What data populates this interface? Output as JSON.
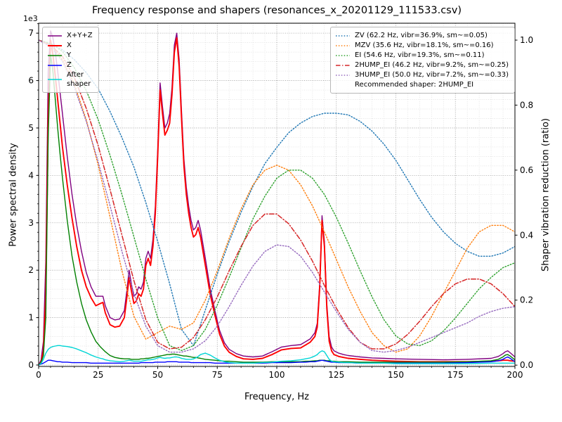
{
  "chart_data": {
    "type": "line",
    "title": "Frequency response and shapers (resonances_x_20201129_111533.csv)",
    "xlabel": "Frequency, Hz",
    "ylabel_left": "Power spectral density",
    "ylabel_right": "Shaper vibration reduction (ratio)",
    "y_left_offset_text": "1e3",
    "xlim": [
      0,
      200
    ],
    "ylim_left": [
      -0.03,
      7.21
    ],
    "ylim_right": [
      -0.004,
      1.052
    ],
    "xticks": [
      0,
      25,
      50,
      75,
      100,
      125,
      150,
      175,
      200
    ],
    "yticks_left": {
      "values": [
        0,
        1,
        2,
        3,
        4,
        5,
        6,
        7
      ],
      "labels": [
        "0",
        "1",
        "2",
        "3",
        "4",
        "5",
        "6",
        "7"
      ]
    },
    "yticks_right": {
      "values": [
        0,
        0.2,
        0.4,
        0.6,
        0.8,
        1.0
      ],
      "labels": [
        "0.0",
        "0.2",
        "0.4",
        "0.6",
        "0.8",
        "1.0"
      ]
    },
    "grid": {
      "major": true,
      "minor": true,
      "major_color": "#9b9b9b",
      "minor_color": "#dcdcdc",
      "x_minor_step": 5,
      "y_minor_step": 0.2
    },
    "psd_x": [
      0,
      1,
      2,
      3,
      4,
      5,
      6,
      7,
      8,
      9,
      10,
      12,
      14,
      16,
      18,
      20,
      22,
      24,
      26,
      27,
      28,
      30,
      32,
      34,
      36,
      37,
      38,
      39,
      40,
      41,
      42,
      43,
      44,
      45,
      46,
      47,
      48,
      49,
      50,
      51,
      52,
      53,
      54,
      55,
      56,
      57,
      58,
      59,
      60,
      61,
      62,
      63,
      64,
      65,
      66,
      67,
      68,
      70,
      72,
      74,
      76,
      78,
      80,
      83,
      86,
      90,
      94,
      98,
      102,
      106,
      110,
      112,
      114,
      116,
      117,
      118,
      119,
      120,
      121,
      122,
      123,
      124,
      126,
      128,
      130,
      135,
      140,
      145,
      150,
      160,
      170,
      180,
      190,
      193,
      195,
      196,
      197,
      198,
      200
    ],
    "psd_series": [
      {
        "name": "X+Y+Z",
        "color": "#800080",
        "linestyle": "solid",
        "width": 1.4,
        "y": [
          0,
          0.1,
          0.5,
          2.2,
          6.2,
          7.05,
          6.9,
          6.6,
          6.2,
          5.75,
          5.3,
          4.4,
          3.6,
          2.95,
          2.4,
          1.95,
          1.65,
          1.45,
          1.45,
          1.45,
          1.25,
          1,
          0.95,
          0.97,
          1.15,
          1.55,
          2,
          1.7,
          1.45,
          1.5,
          1.65,
          1.6,
          1.75,
          2.25,
          2.4,
          2.25,
          2.65,
          3.35,
          4.55,
          5.95,
          5.45,
          5,
          5.1,
          5.3,
          5.85,
          6.75,
          7,
          6.45,
          5.35,
          4.35,
          3.75,
          3.35,
          3.05,
          2.85,
          2.9,
          3.05,
          2.85,
          2.25,
          1.62,
          1.15,
          0.73,
          0.47,
          0.33,
          0.24,
          0.19,
          0.17,
          0.19,
          0.28,
          0.38,
          0.41,
          0.43,
          0.49,
          0.55,
          0.68,
          0.88,
          1.7,
          3.15,
          2.6,
          1.3,
          0.6,
          0.38,
          0.3,
          0.25,
          0.22,
          0.2,
          0.17,
          0.15,
          0.14,
          0.13,
          0.12,
          0.11,
          0.12,
          0.14,
          0.18,
          0.24,
          0.28,
          0.3,
          0.26,
          0.17
        ]
      },
      {
        "name": "X",
        "color": "#ff0000",
        "linestyle": "solid",
        "width": 1.9,
        "y": [
          0,
          0.05,
          0.3,
          1.5,
          5.2,
          6.85,
          6.55,
          6.1,
          5.6,
          5.1,
          4.6,
          3.8,
          3.1,
          2.5,
          2,
          1.65,
          1.42,
          1.25,
          1.3,
          1.32,
          1.1,
          0.85,
          0.8,
          0.82,
          1,
          1.4,
          1.85,
          1.55,
          1.3,
          1.35,
          1.5,
          1.45,
          1.6,
          2.1,
          2.25,
          2.1,
          2.5,
          3.2,
          4.4,
          5.8,
          5.3,
          4.85,
          4.95,
          5.1,
          5.7,
          6.6,
          6.9,
          6.3,
          5.2,
          4.2,
          3.6,
          3.2,
          2.9,
          2.7,
          2.75,
          2.9,
          2.7,
          2.1,
          1.5,
          1.05,
          0.65,
          0.4,
          0.27,
          0.18,
          0.13,
          0.12,
          0.14,
          0.22,
          0.32,
          0.35,
          0.36,
          0.42,
          0.48,
          0.6,
          0.8,
          1.6,
          3.05,
          2.5,
          1.2,
          0.5,
          0.3,
          0.22,
          0.18,
          0.16,
          0.14,
          0.12,
          0.1,
          0.09,
          0.08,
          0.07,
          0.07,
          0.07,
          0.08,
          0.09,
          0.1,
          0.1,
          0.1,
          0.09,
          0.08
        ]
      },
      {
        "name": "Y",
        "color": "#008000",
        "linestyle": "solid",
        "width": 1.4,
        "y": [
          0,
          0.05,
          0.2,
          1,
          4.8,
          6.55,
          6.2,
          5.6,
          5,
          4.45,
          3.95,
          3.05,
          2.3,
          1.75,
          1.3,
          0.95,
          0.7,
          0.5,
          0.38,
          0.33,
          0.28,
          0.2,
          0.16,
          0.14,
          0.13,
          0.13,
          0.13,
          0.12,
          0.12,
          0.12,
          0.12,
          0.13,
          0.13,
          0.14,
          0.14,
          0.15,
          0.16,
          0.17,
          0.18,
          0.19,
          0.2,
          0.21,
          0.22,
          0.22,
          0.23,
          0.23,
          0.22,
          0.21,
          0.2,
          0.19,
          0.19,
          0.18,
          0.17,
          0.16,
          0.16,
          0.15,
          0.14,
          0.12,
          0.11,
          0.1,
          0.09,
          0.08,
          0.08,
          0.07,
          0.06,
          0.06,
          0.06,
          0.07,
          0.07,
          0.07,
          0.07,
          0.08,
          0.08,
          0.09,
          0.09,
          0.1,
          0.1,
          0.1,
          0.09,
          0.09,
          0.08,
          0.08,
          0.07,
          0.07,
          0.07,
          0.06,
          0.06,
          0.06,
          0.06,
          0.06,
          0.06,
          0.07,
          0.09,
          0.12,
          0.17,
          0.21,
          0.22,
          0.19,
          0.11
        ]
      },
      {
        "name": "Z",
        "color": "#0000ff",
        "linestyle": "solid",
        "width": 1.4,
        "y": [
          0,
          0.02,
          0.04,
          0.07,
          0.1,
          0.1,
          0.09,
          0.08,
          0.07,
          0.07,
          0.06,
          0.06,
          0.05,
          0.05,
          0.05,
          0.05,
          0.04,
          0.04,
          0.04,
          0.04,
          0.04,
          0.04,
          0.04,
          0.04,
          0.04,
          0.04,
          0.04,
          0.04,
          0.04,
          0.04,
          0.04,
          0.05,
          0.05,
          0.05,
          0.05,
          0.05,
          0.05,
          0.06,
          0.06,
          0.06,
          0.06,
          0.06,
          0.07,
          0.07,
          0.07,
          0.07,
          0.07,
          0.06,
          0.06,
          0.06,
          0.06,
          0.06,
          0.05,
          0.05,
          0.05,
          0.05,
          0.05,
          0.05,
          0.05,
          0.04,
          0.04,
          0.04,
          0.04,
          0.04,
          0.04,
          0.04,
          0.04,
          0.05,
          0.05,
          0.05,
          0.06,
          0.06,
          0.07,
          0.07,
          0.08,
          0.09,
          0.1,
          0.09,
          0.08,
          0.07,
          0.06,
          0.06,
          0.05,
          0.05,
          0.05,
          0.04,
          0.04,
          0.04,
          0.04,
          0.04,
          0.04,
          0.05,
          0.07,
          0.09,
          0.12,
          0.15,
          0.17,
          0.14,
          0.07
        ]
      },
      {
        "name": "After\nshaper",
        "color": "#00d5d5",
        "linestyle": "solid",
        "width": 1.4,
        "y": [
          0,
          0.03,
          0.12,
          0.25,
          0.33,
          0.37,
          0.39,
          0.4,
          0.41,
          0.41,
          0.4,
          0.39,
          0.37,
          0.34,
          0.3,
          0.26,
          0.21,
          0.17,
          0.14,
          0.13,
          0.11,
          0.09,
          0.08,
          0.07,
          0.08,
          0.09,
          0.1,
          0.09,
          0.08,
          0.08,
          0.08,
          0.08,
          0.09,
          0.1,
          0.11,
          0.11,
          0.12,
          0.13,
          0.15,
          0.16,
          0.15,
          0.14,
          0.15,
          0.15,
          0.16,
          0.17,
          0.17,
          0.16,
          0.14,
          0.13,
          0.12,
          0.12,
          0.12,
          0.13,
          0.15,
          0.18,
          0.22,
          0.25,
          0.21,
          0.15,
          0.1,
          0.07,
          0.05,
          0.04,
          0.04,
          0.04,
          0.05,
          0.06,
          0.08,
          0.09,
          0.11,
          0.13,
          0.15,
          0.19,
          0.22,
          0.27,
          0.3,
          0.28,
          0.2,
          0.12,
          0.08,
          0.07,
          0.06,
          0.05,
          0.05,
          0.04,
          0.04,
          0.04,
          0.03,
          0.03,
          0.03,
          0.03,
          0.04,
          0.04,
          0.04,
          0.04,
          0.04,
          0.04,
          0.04
        ]
      }
    ],
    "shaper_x": [
      0,
      5,
      10,
      15,
      20,
      25,
      30,
      35,
      40,
      45,
      50,
      55,
      60,
      65,
      70,
      75,
      80,
      85,
      90,
      95,
      100,
      105,
      110,
      115,
      120,
      125,
      130,
      135,
      140,
      145,
      150,
      155,
      160,
      165,
      170,
      175,
      180,
      185,
      190,
      195,
      200
    ],
    "shaper_series": [
      {
        "name": "ZV",
        "label": "ZV (62.2 Hz, vibr=36.9%, sm~=0.05)",
        "color": "#1f77b4",
        "linestyle": "dotted",
        "width": 1.4,
        "y": [
          1,
          0.99,
          0.97,
          0.94,
          0.9,
          0.85,
          0.78,
          0.7,
          0.61,
          0.5,
          0.38,
          0.25,
          0.11,
          0.06,
          0.17,
          0.28,
          0.38,
          0.47,
          0.55,
          0.62,
          0.67,
          0.715,
          0.745,
          0.765,
          0.775,
          0.775,
          0.77,
          0.75,
          0.72,
          0.68,
          0.63,
          0.57,
          0.51,
          0.455,
          0.41,
          0.375,
          0.35,
          0.335,
          0.335,
          0.345,
          0.365
        ]
      },
      {
        "name": "MZV",
        "label": "MZV (35.6 Hz, vibr=18.1%, sm~=0.16)",
        "color": "#ff7f0e",
        "linestyle": "dotted",
        "width": 1.4,
        "y": [
          1,
          0.985,
          0.94,
          0.865,
          0.755,
          0.615,
          0.455,
          0.29,
          0.15,
          0.08,
          0.1,
          0.12,
          0.11,
          0.13,
          0.2,
          0.29,
          0.39,
          0.48,
          0.555,
          0.6,
          0.615,
          0.6,
          0.555,
          0.49,
          0.41,
          0.325,
          0.24,
          0.165,
          0.1,
          0.06,
          0.04,
          0.05,
          0.09,
          0.15,
          0.22,
          0.29,
          0.36,
          0.41,
          0.43,
          0.43,
          0.41
        ]
      },
      {
        "name": "EI",
        "label": "EI (54.6 Hz, vibr=19.3%, sm~=0.11)",
        "color": "#2ca02c",
        "linestyle": "dotted",
        "width": 1.4,
        "y": [
          1,
          0.99,
          0.965,
          0.915,
          0.845,
          0.755,
          0.645,
          0.525,
          0.395,
          0.265,
          0.145,
          0.06,
          0.045,
          0.06,
          0.11,
          0.185,
          0.27,
          0.36,
          0.45,
          0.52,
          0.575,
          0.6,
          0.6,
          0.575,
          0.525,
          0.455,
          0.375,
          0.29,
          0.21,
          0.14,
          0.09,
          0.065,
          0.06,
          0.075,
          0.105,
          0.145,
          0.19,
          0.235,
          0.27,
          0.3,
          0.315
        ]
      },
      {
        "name": "2HUMP_EI",
        "label": "2HUMP_EI (46.2 Hz, vibr=9.2%, sm~=0.25)",
        "color": "#d62728",
        "linestyle": "dashdot",
        "width": 1.5,
        "y": [
          1,
          0.985,
          0.95,
          0.885,
          0.79,
          0.675,
          0.54,
          0.4,
          0.26,
          0.14,
          0.07,
          0.05,
          0.055,
          0.085,
          0.14,
          0.21,
          0.29,
          0.365,
          0.43,
          0.465,
          0.465,
          0.435,
          0.385,
          0.32,
          0.245,
          0.175,
          0.115,
          0.07,
          0.05,
          0.05,
          0.065,
          0.095,
          0.135,
          0.18,
          0.22,
          0.25,
          0.265,
          0.265,
          0.25,
          0.22,
          0.18
        ]
      },
      {
        "name": "3HUMP_EI",
        "label": "3HUMP_EI (50.0 Hz, vibr=7.2%, sm~=0.33)",
        "color": "#9467bd",
        "linestyle": "dotted",
        "width": 1.4,
        "y": [
          1,
          0.98,
          0.935,
          0.855,
          0.75,
          0.625,
          0.49,
          0.35,
          0.22,
          0.12,
          0.06,
          0.04,
          0.04,
          0.05,
          0.075,
          0.12,
          0.18,
          0.245,
          0.305,
          0.35,
          0.37,
          0.365,
          0.335,
          0.285,
          0.225,
          0.165,
          0.11,
          0.07,
          0.045,
          0.04,
          0.045,
          0.055,
          0.07,
          0.085,
          0.1,
          0.115,
          0.13,
          0.15,
          0.165,
          0.175,
          0.18
        ]
      }
    ],
    "recommendation": "Recommended shaper: 2HUMP_EI"
  }
}
